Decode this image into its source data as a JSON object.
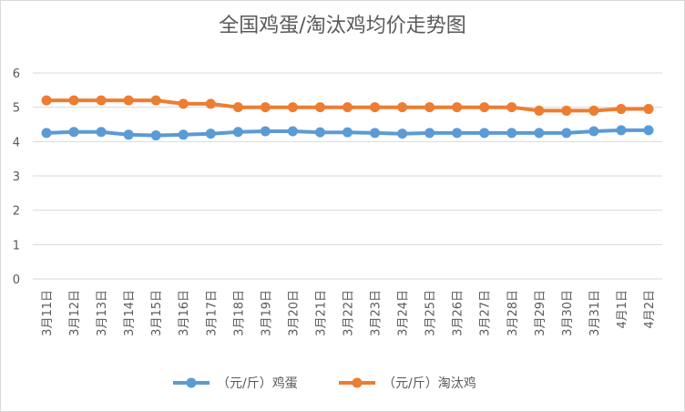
{
  "chart_data": {
    "type": "line",
    "title": "全国鸡蛋/淘汰鸡均价走势图",
    "categories": [
      "3月11日",
      "3月12日",
      "3月13日",
      "3月14日",
      "3月15日",
      "3月16日",
      "3月17日",
      "3月18日",
      "3月19日",
      "3月20日",
      "3月21日",
      "3月22日",
      "3月23日",
      "3月24日",
      "3月25日",
      "3月26日",
      "3月27日",
      "3月28日",
      "3月29日",
      "3月30日",
      "3月31日",
      "4月1日",
      "4月2日"
    ],
    "ylim": [
      0,
      6
    ],
    "yticks": [
      "0",
      "1",
      "2",
      "3",
      "4",
      "5",
      "6"
    ],
    "grid": true,
    "legend_position": "bottom",
    "series": [
      {
        "name": "（元/斤）鸡蛋",
        "color": "#5b9bd5",
        "values": [
          4.25,
          4.28,
          4.28,
          4.2,
          4.18,
          4.2,
          4.23,
          4.28,
          4.3,
          4.3,
          4.27,
          4.27,
          4.25,
          4.23,
          4.25,
          4.25,
          4.25,
          4.25,
          4.25,
          4.25,
          4.3,
          4.33,
          4.33
        ]
      },
      {
        "name": "（元/斤）淘汰鸡",
        "color": "#ed7d31",
        "values": [
          5.2,
          5.2,
          5.2,
          5.2,
          5.2,
          5.1,
          5.1,
          5.0,
          5.0,
          5.0,
          5.0,
          5.0,
          5.0,
          5.0,
          5.0,
          5.0,
          5.0,
          5.0,
          4.9,
          4.9,
          4.9,
          4.95,
          4.95
        ]
      }
    ]
  }
}
